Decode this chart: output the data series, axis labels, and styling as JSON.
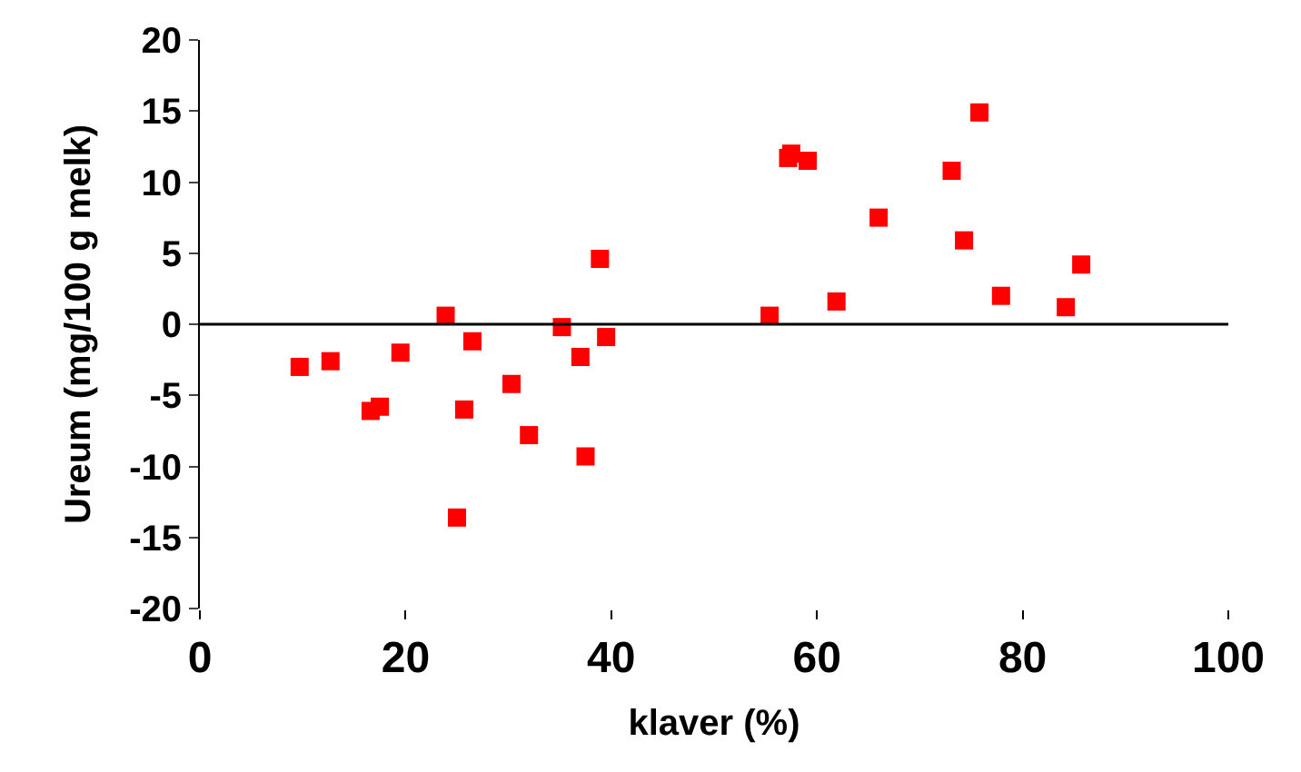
{
  "chart_data": {
    "type": "scatter",
    "xlabel": "klaver (%)",
    "ylabel": "Ureum (mg/100 g melk)",
    "x": [
      9.7,
      12.7,
      16.6,
      17.5,
      19.5,
      23.9,
      25.0,
      25.7,
      26.5,
      30.3,
      32.0,
      35.2,
      37.0,
      37.5,
      38.9,
      39.5,
      55.4,
      57.2,
      57.5,
      59.1,
      61.9,
      66.0,
      73.1,
      74.3,
      75.8,
      77.9,
      84.2,
      85.7
    ],
    "series": [
      {
        "color": "#ff0000",
        "values": [
          -3.0,
          -2.6,
          -6.1,
          -5.8,
          -2.0,
          0.6,
          -13.6,
          -6.0,
          -1.2,
          -4.2,
          -7.8,
          -0.2,
          -2.3,
          -9.3,
          4.6,
          -0.9,
          0.6,
          11.7,
          12.0,
          11.5,
          1.6,
          7.5,
          10.8,
          5.9,
          14.9,
          2.0,
          1.2,
          4.2
        ]
      }
    ],
    "xlim": [
      0,
      100
    ],
    "xticks": [
      0,
      20,
      40,
      60,
      80,
      100
    ],
    "ylim": [
      -20,
      20
    ],
    "yticks": [
      -20,
      -15,
      -10,
      -5,
      0,
      5,
      10,
      15,
      20
    ],
    "ref_lines": [
      {
        "axis": "y",
        "value": 0
      }
    ],
    "marker": "square"
  }
}
